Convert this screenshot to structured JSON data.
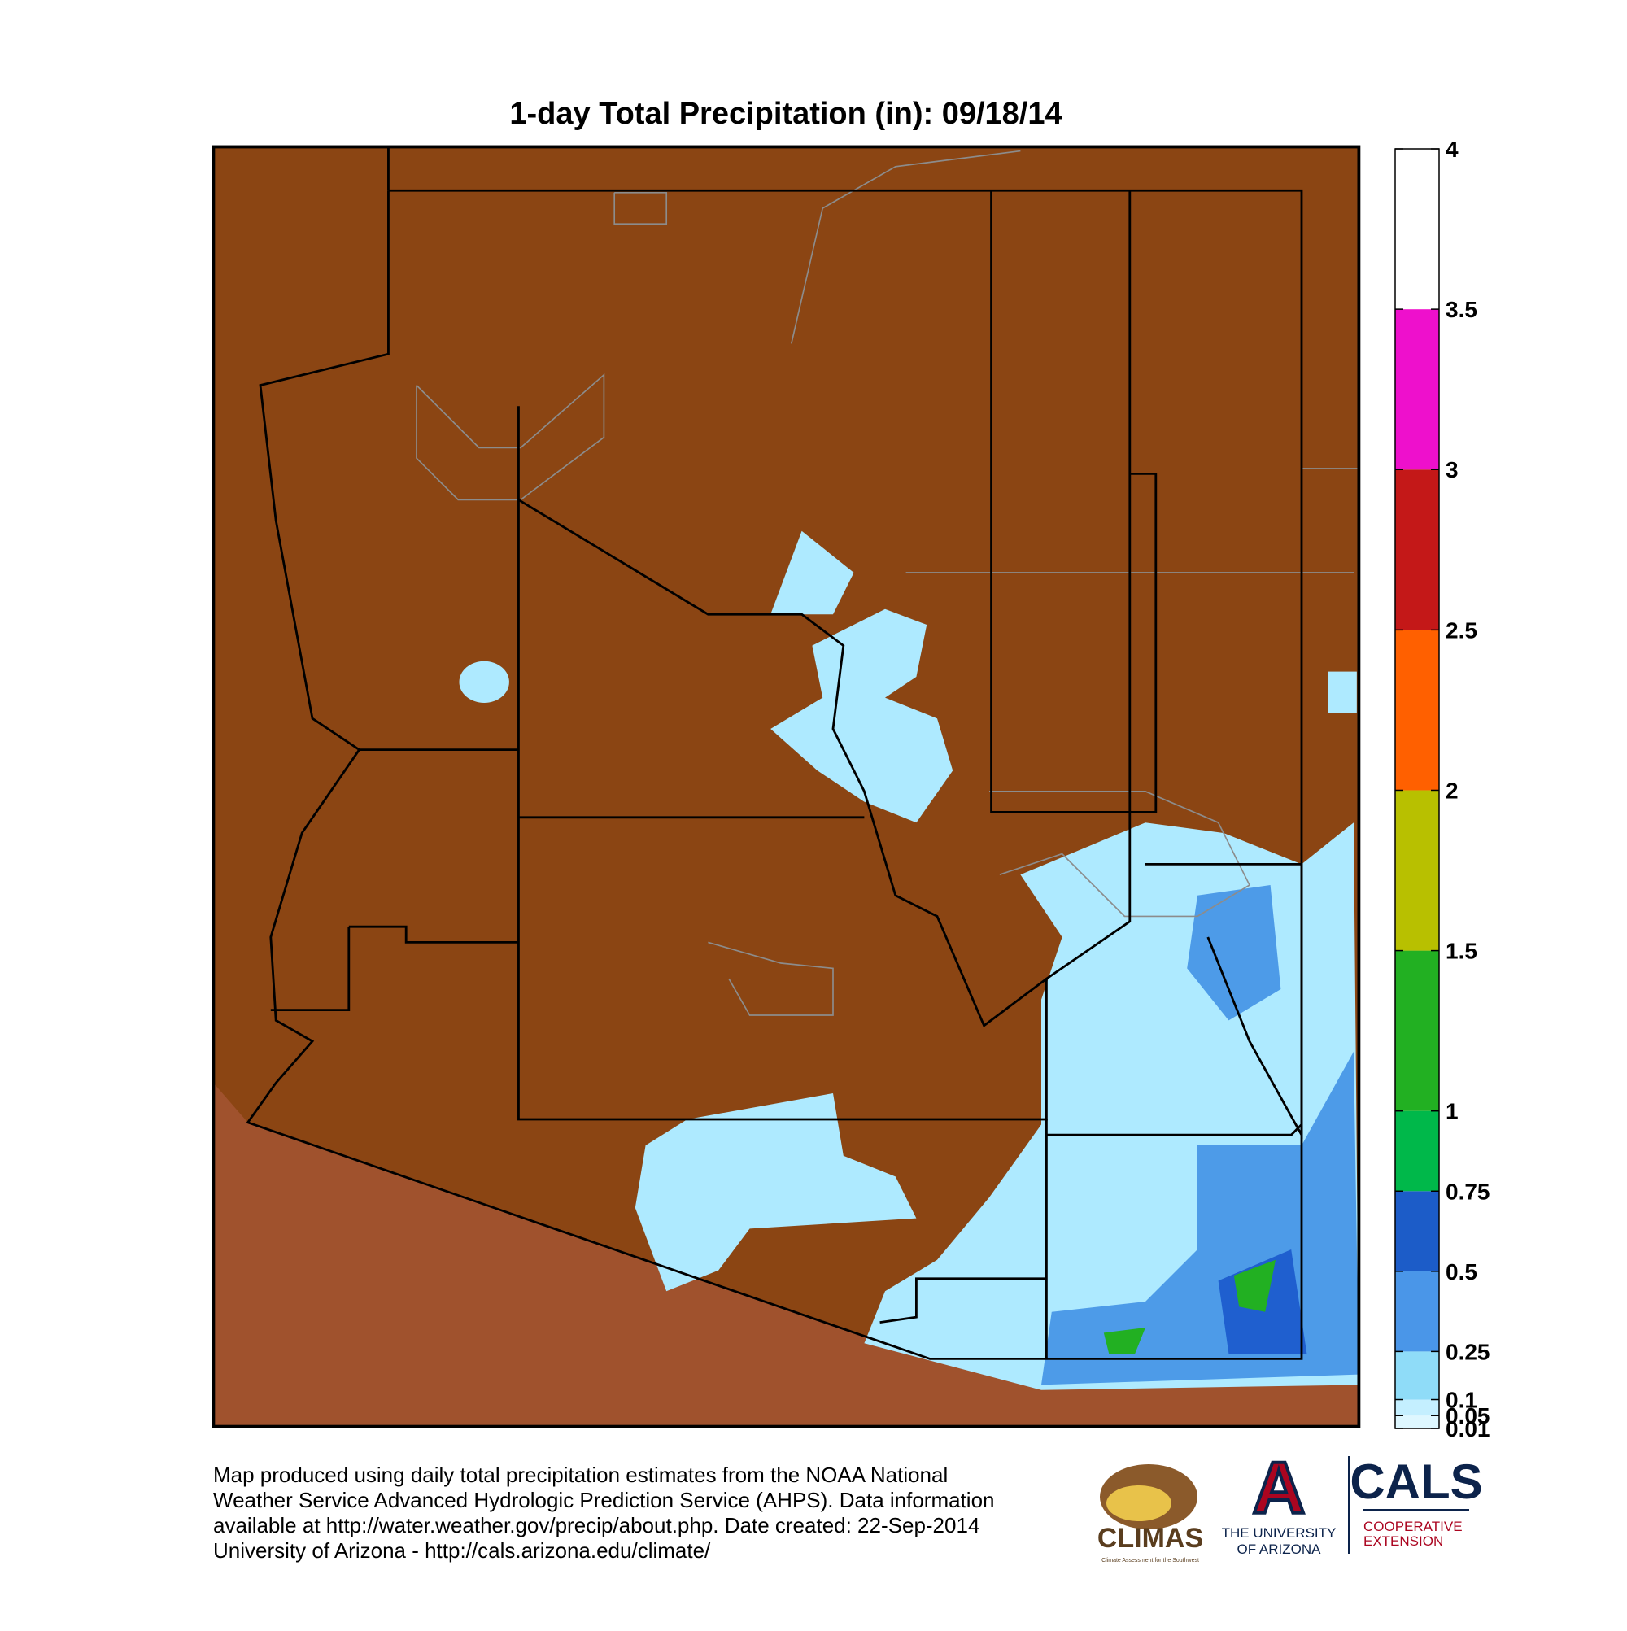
{
  "title": "1-day Total Precipitation (in): 09/18/14",
  "colorbar": {
    "lim": [
      0.01,
      4
    ],
    "ticks": [
      0.01,
      0.05,
      0.1,
      0.25,
      0.5,
      0.75,
      1,
      1.5,
      2,
      2.5,
      3,
      3.5,
      4
    ],
    "colors": [
      "#def7ff",
      "#c4efff",
      "#8fdcf8",
      "#4a96e8",
      "#1c5cc8",
      "#00b84a",
      "#22b022",
      "#b8c000",
      "#ff6000",
      "#c41818",
      "#ee10cc",
      "#ffffff"
    ]
  },
  "footer": {
    "lines": [
      "Map produced using daily total precipitation estimates from the NOAA National",
      "Weather Service Advanced Hydrologic Prediction Service (AHPS). Data information",
      "available at http://water.weather.gov/precip/about.php. Date created: 22-Sep-2014",
      "University of Arizona - http://cals.arizona.edu/climate/"
    ]
  },
  "logos": {
    "climas": "CLIMAS",
    "climas_tagline": "Climate Assessment for the Southwest",
    "university": [
      "THE UNIVERSITY",
      "OF ARIZONA"
    ],
    "cals": "CALS",
    "cals_sub": [
      "COOPERATIVE",
      "EXTENSION"
    ]
  }
}
